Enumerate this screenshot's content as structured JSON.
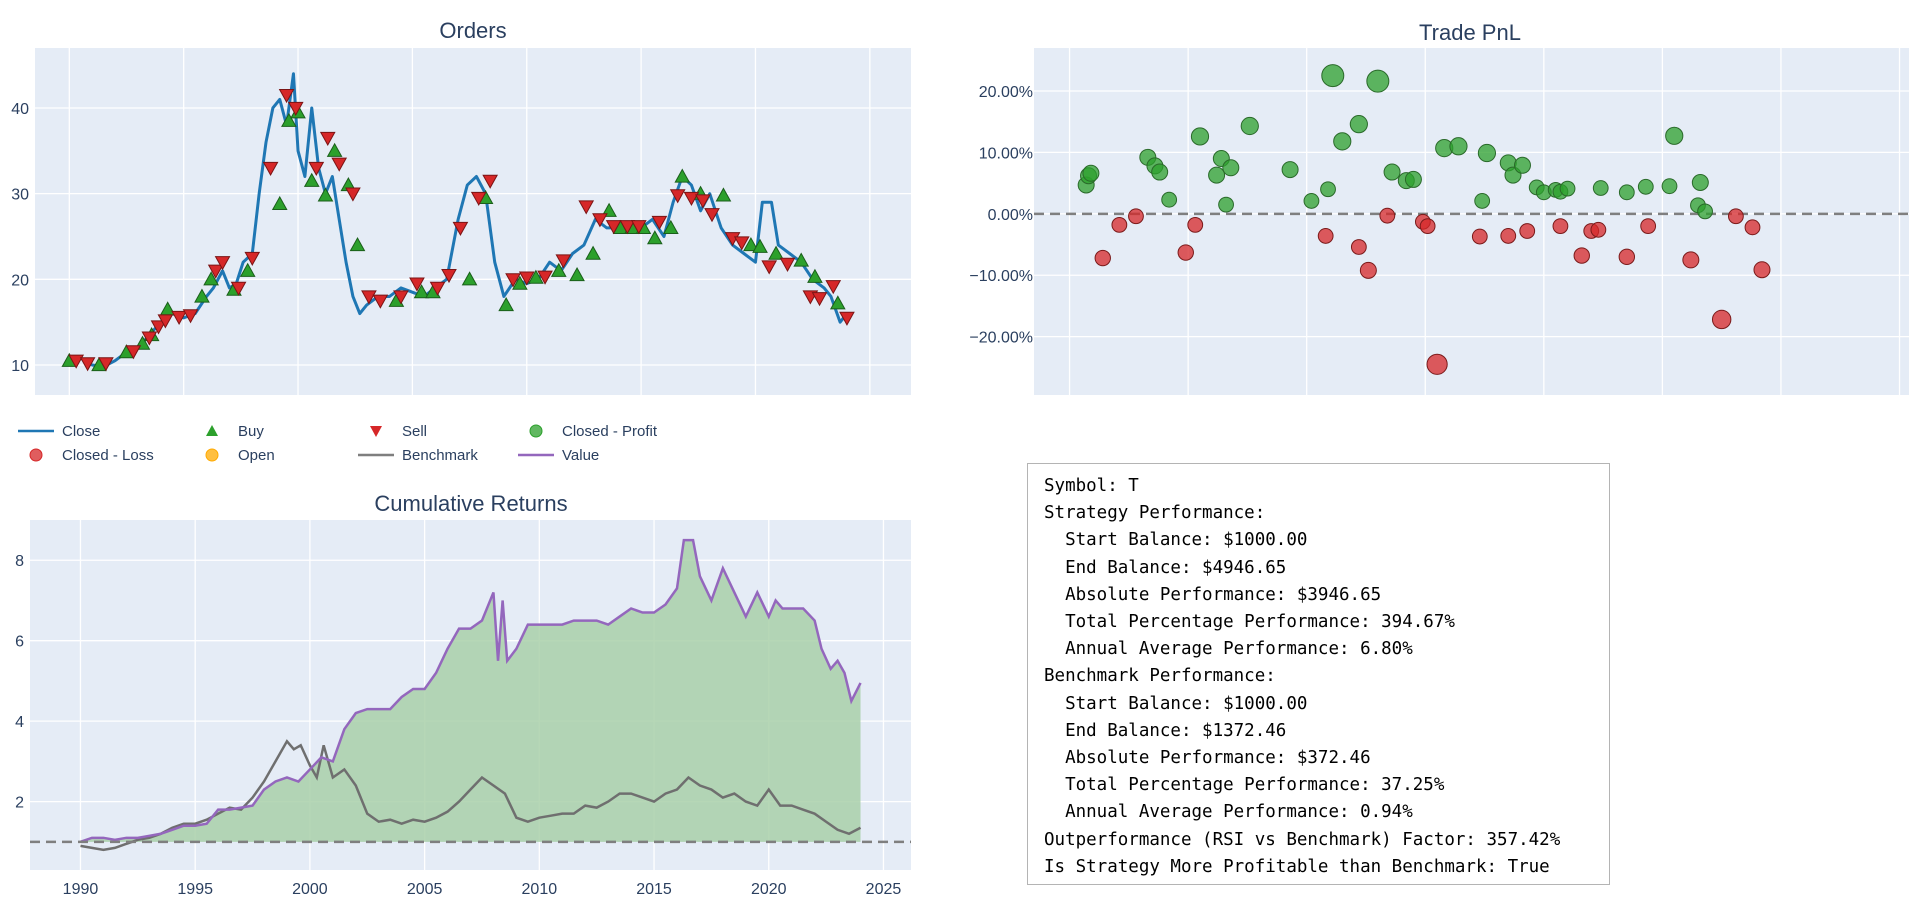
{
  "colors": {
    "close": "#1f77b4",
    "buy": "#2ca02c",
    "sell": "#d62728",
    "profit": "#2ca02c",
    "loss": "#d62728",
    "open": "#ffaa00",
    "benchmark": "#7f7f7f",
    "value": "#9467bd",
    "plot_bg": "#e5ecf6",
    "fill": "#a9d0a9"
  },
  "legend": [
    {
      "label": "Close",
      "kind": "line",
      "color": "#1f77b4"
    },
    {
      "label": "Buy",
      "kind": "triangle-up",
      "color": "#2ca02c"
    },
    {
      "label": "Sell",
      "kind": "triangle-down",
      "color": "#d62728"
    },
    {
      "label": "Closed - Profit",
      "kind": "circle",
      "color": "#2ca02c"
    },
    {
      "label": "Closed - Loss",
      "kind": "circle",
      "color": "#d62728"
    },
    {
      "label": "Open",
      "kind": "circle",
      "color": "#ffaa00"
    },
    {
      "label": "Benchmark",
      "kind": "line",
      "color": "#7f7f7f"
    },
    {
      "label": "Value",
      "kind": "line",
      "color": "#9467bd"
    }
  ],
  "chart_data": [
    {
      "type": "line",
      "title": "Orders",
      "xlim": [
        1988.5,
        2026.8
      ],
      "ylim": [
        6.5,
        47
      ],
      "yticks": [
        10,
        20,
        30,
        40
      ],
      "close": {
        "x": [
          1990,
          1990.5,
          1991,
          1991.5,
          1992,
          1992.5,
          1993,
          1993.5,
          1994,
          1994.5,
          1995,
          1995.5,
          1996,
          1996.3,
          1996.7,
          1997,
          1997.3,
          1997.6,
          1998,
          1998.3,
          1998.6,
          1998.9,
          1999.2,
          1999.5,
          1999.8,
          2000,
          2000.3,
          2000.6,
          2000.9,
          2001.2,
          2001.5,
          2001.8,
          2002.1,
          2002.4,
          2002.7,
          2003,
          2003.5,
          2004,
          2004.5,
          2005,
          2005.5,
          2006,
          2006.5,
          2007,
          2007.4,
          2007.8,
          2008.2,
          2008.6,
          2009,
          2009.5,
          2010,
          2010.5,
          2011,
          2011.5,
          2012,
          2012.5,
          2013,
          2013.5,
          2014,
          2014.5,
          2015,
          2015.5,
          2016,
          2016.4,
          2016.8,
          2017.2,
          2017.6,
          2018,
          2018.5,
          2019,
          2019.5,
          2020,
          2020.3,
          2020.7,
          2021,
          2021.5,
          2022,
          2022.5,
          2023,
          2023.3,
          2023.7,
          2024
        ],
        "y": [
          10.5,
          10.8,
          10,
          9.8,
          10.5,
          11.5,
          12,
          13.5,
          15,
          16,
          15.5,
          16,
          18,
          19,
          21,
          19,
          19.5,
          22,
          23,
          30,
          36,
          40,
          41,
          38,
          44,
          35,
          32,
          40,
          33,
          30,
          32,
          27,
          22,
          18,
          16,
          17,
          18,
          18,
          19,
          18.5,
          18,
          19,
          20,
          27,
          31,
          32,
          30,
          22,
          18,
          20,
          19.5,
          20,
          22,
          21,
          23,
          24,
          27,
          26,
          26,
          25.5,
          26,
          27,
          25,
          29,
          32,
          31,
          28,
          30,
          26,
          24,
          23,
          22,
          29,
          29,
          24,
          23,
          22,
          20,
          19,
          18,
          15,
          16
        ]
      },
      "buy": {
        "x": [
          1990,
          1991.3,
          1992.5,
          1993.2,
          1993.6,
          1994.3,
          1995.8,
          1996.2,
          1997.2,
          1997.8,
          1999.2,
          1999.6,
          2000,
          2000.6,
          2001.2,
          2001.6,
          2002.2,
          2002.6,
          2004.3,
          2005.4,
          2005.9,
          2007.5,
          2008.2,
          2009.1,
          2009.7,
          2010.4,
          2011.4,
          2012.2,
          2012.9,
          2013.6,
          2014.1,
          2014.6,
          2015.1,
          2015.6,
          2016.3,
          2016.8,
          2017.6,
          2018.6,
          2019.8,
          2020.2,
          2020.9,
          2022,
          2022.6,
          2023.6
        ],
        "y": [
          10.5,
          10,
          11.5,
          12.5,
          13.5,
          16.5,
          18,
          20,
          18.8,
          21,
          28.8,
          38.5,
          39.5,
          31.5,
          29.8,
          35,
          31,
          24,
          17.5,
          18.5,
          18.5,
          20,
          29.5,
          17,
          19.5,
          20.2,
          21,
          20.5,
          23,
          28,
          26,
          26,
          26,
          24.8,
          26,
          32,
          30,
          29.8,
          24,
          23.8,
          23,
          22.2,
          20.3,
          17.2
        ]
      },
      "sell": {
        "x": [
          1990.3,
          1990.8,
          1991.6,
          1992.8,
          1993.5,
          1993.9,
          1994.2,
          1994.8,
          1995.3,
          1996.4,
          1996.7,
          1997.4,
          1998,
          1998.8,
          1999.5,
          1999.9,
          2000.8,
          2001.3,
          2001.8,
          2002.4,
          2003.1,
          2003.6,
          2004.5,
          2005.2,
          2006.1,
          2006.6,
          2007.1,
          2007.9,
          2008.4,
          2009.4,
          2010,
          2010.8,
          2011.6,
          2012.6,
          2013.2,
          2013.8,
          2014.4,
          2014.9,
          2015.8,
          2016.6,
          2017.2,
          2017.7,
          2018.1,
          2019,
          2019.4,
          2020.6,
          2021.4,
          2022.4,
          2022.8,
          2023.4,
          2024
        ],
        "y": [
          10.5,
          10.2,
          10.2,
          11.6,
          13.2,
          14.5,
          15.2,
          15.6,
          15.8,
          21,
          22,
          19,
          22.5,
          33,
          41.5,
          40,
          33,
          36.5,
          33.5,
          30,
          18,
          17.5,
          18,
          19.5,
          19,
          20.5,
          26,
          29.5,
          31.5,
          20,
          20.2,
          20.3,
          22.2,
          28.5,
          27,
          26.2,
          26.2,
          26.2,
          26.7,
          29.8,
          29.5,
          29.2,
          27.6,
          24.8,
          24.3,
          21.5,
          21.8,
          18,
          17.8,
          19.2,
          15.5
        ]
      }
    },
    {
      "type": "scatter",
      "title": "Trade PnL",
      "xlim": [
        1990.5,
        2027.4
      ],
      "ylim": [
        -29.5,
        27
      ],
      "yticks": [
        -20,
        -10,
        0,
        10,
        20
      ],
      "ytick_labels": [
        "−20.00%",
        "−10.00%",
        "0.00%",
        "10.00%",
        "20.00%"
      ],
      "profit": {
        "x": [
          1992.7,
          1992.8,
          1992.9,
          1995.3,
          1995.6,
          1995.8,
          1996.2,
          1997.5,
          1998.2,
          1998.4,
          1998.6,
          1998.8,
          1999.6,
          2001.3,
          2002.2,
          2002.9,
          2003.1,
          2003.5,
          2004.2,
          2005,
          2005.6,
          2006.2,
          2006.5,
          2007.8,
          2008.4,
          2009.4,
          2009.6,
          2010.5,
          2010.7,
          2011.1,
          2011.7,
          2012,
          2012.5,
          2012.7,
          2013,
          2014.4,
          2015.5,
          2016.3,
          2017.3,
          2017.5,
          2018.5,
          2018.6,
          2018.8,
          2019.6,
          2022.2,
          2022.5
        ],
        "y": [
          4.7,
          6.2,
          6.6,
          9.2,
          7.8,
          6.8,
          2.3,
          12.6,
          6.3,
          9,
          1.5,
          7.5,
          14.3,
          7.2,
          2.1,
          4,
          22.5,
          11.8,
          14.6,
          21.6,
          6.8,
          5.4,
          5.6,
          10.7,
          11,
          2.1,
          9.9,
          8.3,
          6.3,
          7.9,
          4.3,
          3.5,
          3.9,
          3.6,
          4.1,
          4.2,
          3.5,
          4.4,
          4.5,
          12.7,
          1.4,
          5.1,
          0.4,
          0,
          0,
          0
        ],
        "size": [
          0.5,
          0.5,
          0.5,
          0.5,
          0.5,
          0.5,
          0.4,
          0.6,
          0.5,
          0.5,
          0.4,
          0.5,
          0.6,
          0.5,
          0.4,
          0.4,
          1,
          0.6,
          0.6,
          1,
          0.5,
          0.5,
          0.5,
          0.6,
          0.6,
          0.4,
          0.6,
          0.5,
          0.5,
          0.5,
          0.4,
          0.4,
          0.4,
          0.4,
          0.4,
          0.4,
          0.4,
          0.4,
          0.4,
          0.6,
          0.4,
          0.5,
          0.4,
          0,
          0,
          0
        ]
      },
      "loss": {
        "x": [
          1993.4,
          1994.1,
          1994.8,
          1996.9,
          1997.3,
          2002.8,
          2004.2,
          2004.6,
          2005.4,
          2006.9,
          2007.1,
          2007.5,
          2009.3,
          2010.5,
          2011.3,
          2012.7,
          2013.6,
          2014,
          2014.3,
          2015.5,
          2016.4,
          2018.2,
          2019.5,
          2020.1,
          2020.8,
          2021.2
        ],
        "y": [
          -7.2,
          -1.8,
          -0.4,
          -6.3,
          -1.8,
          -3.6,
          -5.4,
          -9.2,
          -0.3,
          -1.3,
          -2,
          -24.5,
          -3.7,
          -3.6,
          -2.8,
          -2,
          -6.8,
          -2.8,
          -2.6,
          -7,
          -2,
          -7.5,
          -17.2,
          -0.4,
          -2.2,
          -9.1
        ],
        "size": [
          0.45,
          0.4,
          0.4,
          0.45,
          0.4,
          0.4,
          0.4,
          0.5,
          0.4,
          0.4,
          0.4,
          0.85,
          0.4,
          0.4,
          0.4,
          0.4,
          0.45,
          0.4,
          0.4,
          0.45,
          0.4,
          0.5,
          0.7,
          0.4,
          0.4,
          0.5
        ]
      }
    },
    {
      "type": "area",
      "title": "Cumulative Returns",
      "xlim": [
        1987.8,
        2026.2
      ],
      "ylim": [
        0.3,
        9
      ],
      "xticks": [
        1990,
        1995,
        2000,
        2005,
        2010,
        2015,
        2020,
        2025
      ],
      "yticks": [
        2,
        4,
        6,
        8
      ],
      "value": {
        "x": [
          1990,
          1990.5,
          1991,
          1991.5,
          1992,
          1992.5,
          1993,
          1993.5,
          1994,
          1994.5,
          1995,
          1995.5,
          1996,
          1996.5,
          1997,
          1997.5,
          1998,
          1998.5,
          1999,
          1999.5,
          2000,
          2000.5,
          2001,
          2001.5,
          2002,
          2002.5,
          2003,
          2003.5,
          2004,
          2004.5,
          2005,
          2005.5,
          2006,
          2006.5,
          2007,
          2007.5,
          2008,
          2008.2,
          2008.4,
          2008.6,
          2009,
          2009.5,
          2010,
          2010.5,
          2011,
          2011.5,
          2012,
          2012.5,
          2013,
          2013.5,
          2014,
          2014.5,
          2015,
          2015.5,
          2016,
          2016.3,
          2016.7,
          2017,
          2017.5,
          2018,
          2018.5,
          2019,
          2019.5,
          2020,
          2020.3,
          2020.6,
          2021,
          2021.5,
          2022,
          2022.3,
          2022.7,
          2023,
          2023.3,
          2023.6,
          2024
        ],
        "y": [
          1,
          1.1,
          1.1,
          1.05,
          1.1,
          1.1,
          1.15,
          1.2,
          1.3,
          1.4,
          1.4,
          1.45,
          1.8,
          1.8,
          1.85,
          1.9,
          2.3,
          2.5,
          2.6,
          2.5,
          2.8,
          3.1,
          3,
          3.8,
          4.2,
          4.3,
          4.3,
          4.3,
          4.6,
          4.8,
          4.8,
          5.2,
          5.8,
          6.3,
          6.3,
          6.5,
          7.2,
          5.5,
          7,
          5.5,
          5.8,
          6.4,
          6.4,
          6.4,
          6.4,
          6.5,
          6.5,
          6.5,
          6.4,
          6.6,
          6.8,
          6.7,
          6.7,
          6.9,
          7.3,
          8.5,
          8.5,
          7.6,
          7,
          7.8,
          7.2,
          6.6,
          7.2,
          6.6,
          7,
          6.8,
          6.8,
          6.8,
          6.5,
          5.8,
          5.3,
          5.5,
          5.2,
          4.5,
          4.95
        ]
      },
      "benchmark": {
        "x": [
          1990,
          1990.5,
          1991,
          1991.5,
          1992,
          1992.5,
          1993,
          1993.5,
          1994,
          1994.5,
          1995,
          1995.5,
          1996,
          1996.5,
          1997,
          1997.5,
          1998,
          1998.5,
          1999,
          1999.3,
          1999.6,
          2000,
          2000.3,
          2000.6,
          2001,
          2001.5,
          2002,
          2002.5,
          2003,
          2003.5,
          2004,
          2004.5,
          2005,
          2005.5,
          2006,
          2006.5,
          2007,
          2007.5,
          2008,
          2008.5,
          2009,
          2009.5,
          2010,
          2010.5,
          2011,
          2011.5,
          2012,
          2012.5,
          2013,
          2013.5,
          2014,
          2014.5,
          2015,
          2015.5,
          2016,
          2016.5,
          2017,
          2017.5,
          2018,
          2018.5,
          2019,
          2019.5,
          2020,
          2020.5,
          2021,
          2021.5,
          2022,
          2022.5,
          2023,
          2023.5,
          2024
        ],
        "y": [
          0.9,
          0.85,
          0.8,
          0.85,
          0.95,
          1.05,
          1.1,
          1.2,
          1.35,
          1.45,
          1.45,
          1.55,
          1.7,
          1.85,
          1.8,
          2.1,
          2.5,
          3,
          3.5,
          3.3,
          3.4,
          2.9,
          2.6,
          3.4,
          2.6,
          2.8,
          2.4,
          1.7,
          1.5,
          1.55,
          1.45,
          1.55,
          1.5,
          1.6,
          1.75,
          2,
          2.3,
          2.6,
          2.4,
          2.2,
          1.6,
          1.5,
          1.6,
          1.65,
          1.7,
          1.7,
          1.9,
          1.85,
          2,
          2.2,
          2.2,
          2.1,
          2,
          2.2,
          2.3,
          2.6,
          2.4,
          2.3,
          2.1,
          2.2,
          2,
          1.9,
          2.3,
          1.9,
          1.9,
          1.8,
          1.7,
          1.5,
          1.3,
          1.2,
          1.35
        ]
      },
      "baseline": 1
    }
  ],
  "stats": {
    "lines": [
      "Symbol: T",
      "Strategy Performance:",
      "  Start Balance: $1000.00",
      "  End Balance: $4946.65",
      "  Absolute Performance: $3946.65",
      "  Total Percentage Performance: 394.67%",
      "  Annual Average Performance: 6.80%",
      "Benchmark Performance:",
      "  Start Balance: $1000.00",
      "  End Balance: $1372.46",
      "  Absolute Performance: $372.46",
      "  Total Percentage Performance: 37.25%",
      "  Annual Average Performance: 0.94%",
      "Outperformance (RSI vs Benchmark) Factor: 357.42%",
      "Is Strategy More Profitable than Benchmark: True"
    ]
  }
}
